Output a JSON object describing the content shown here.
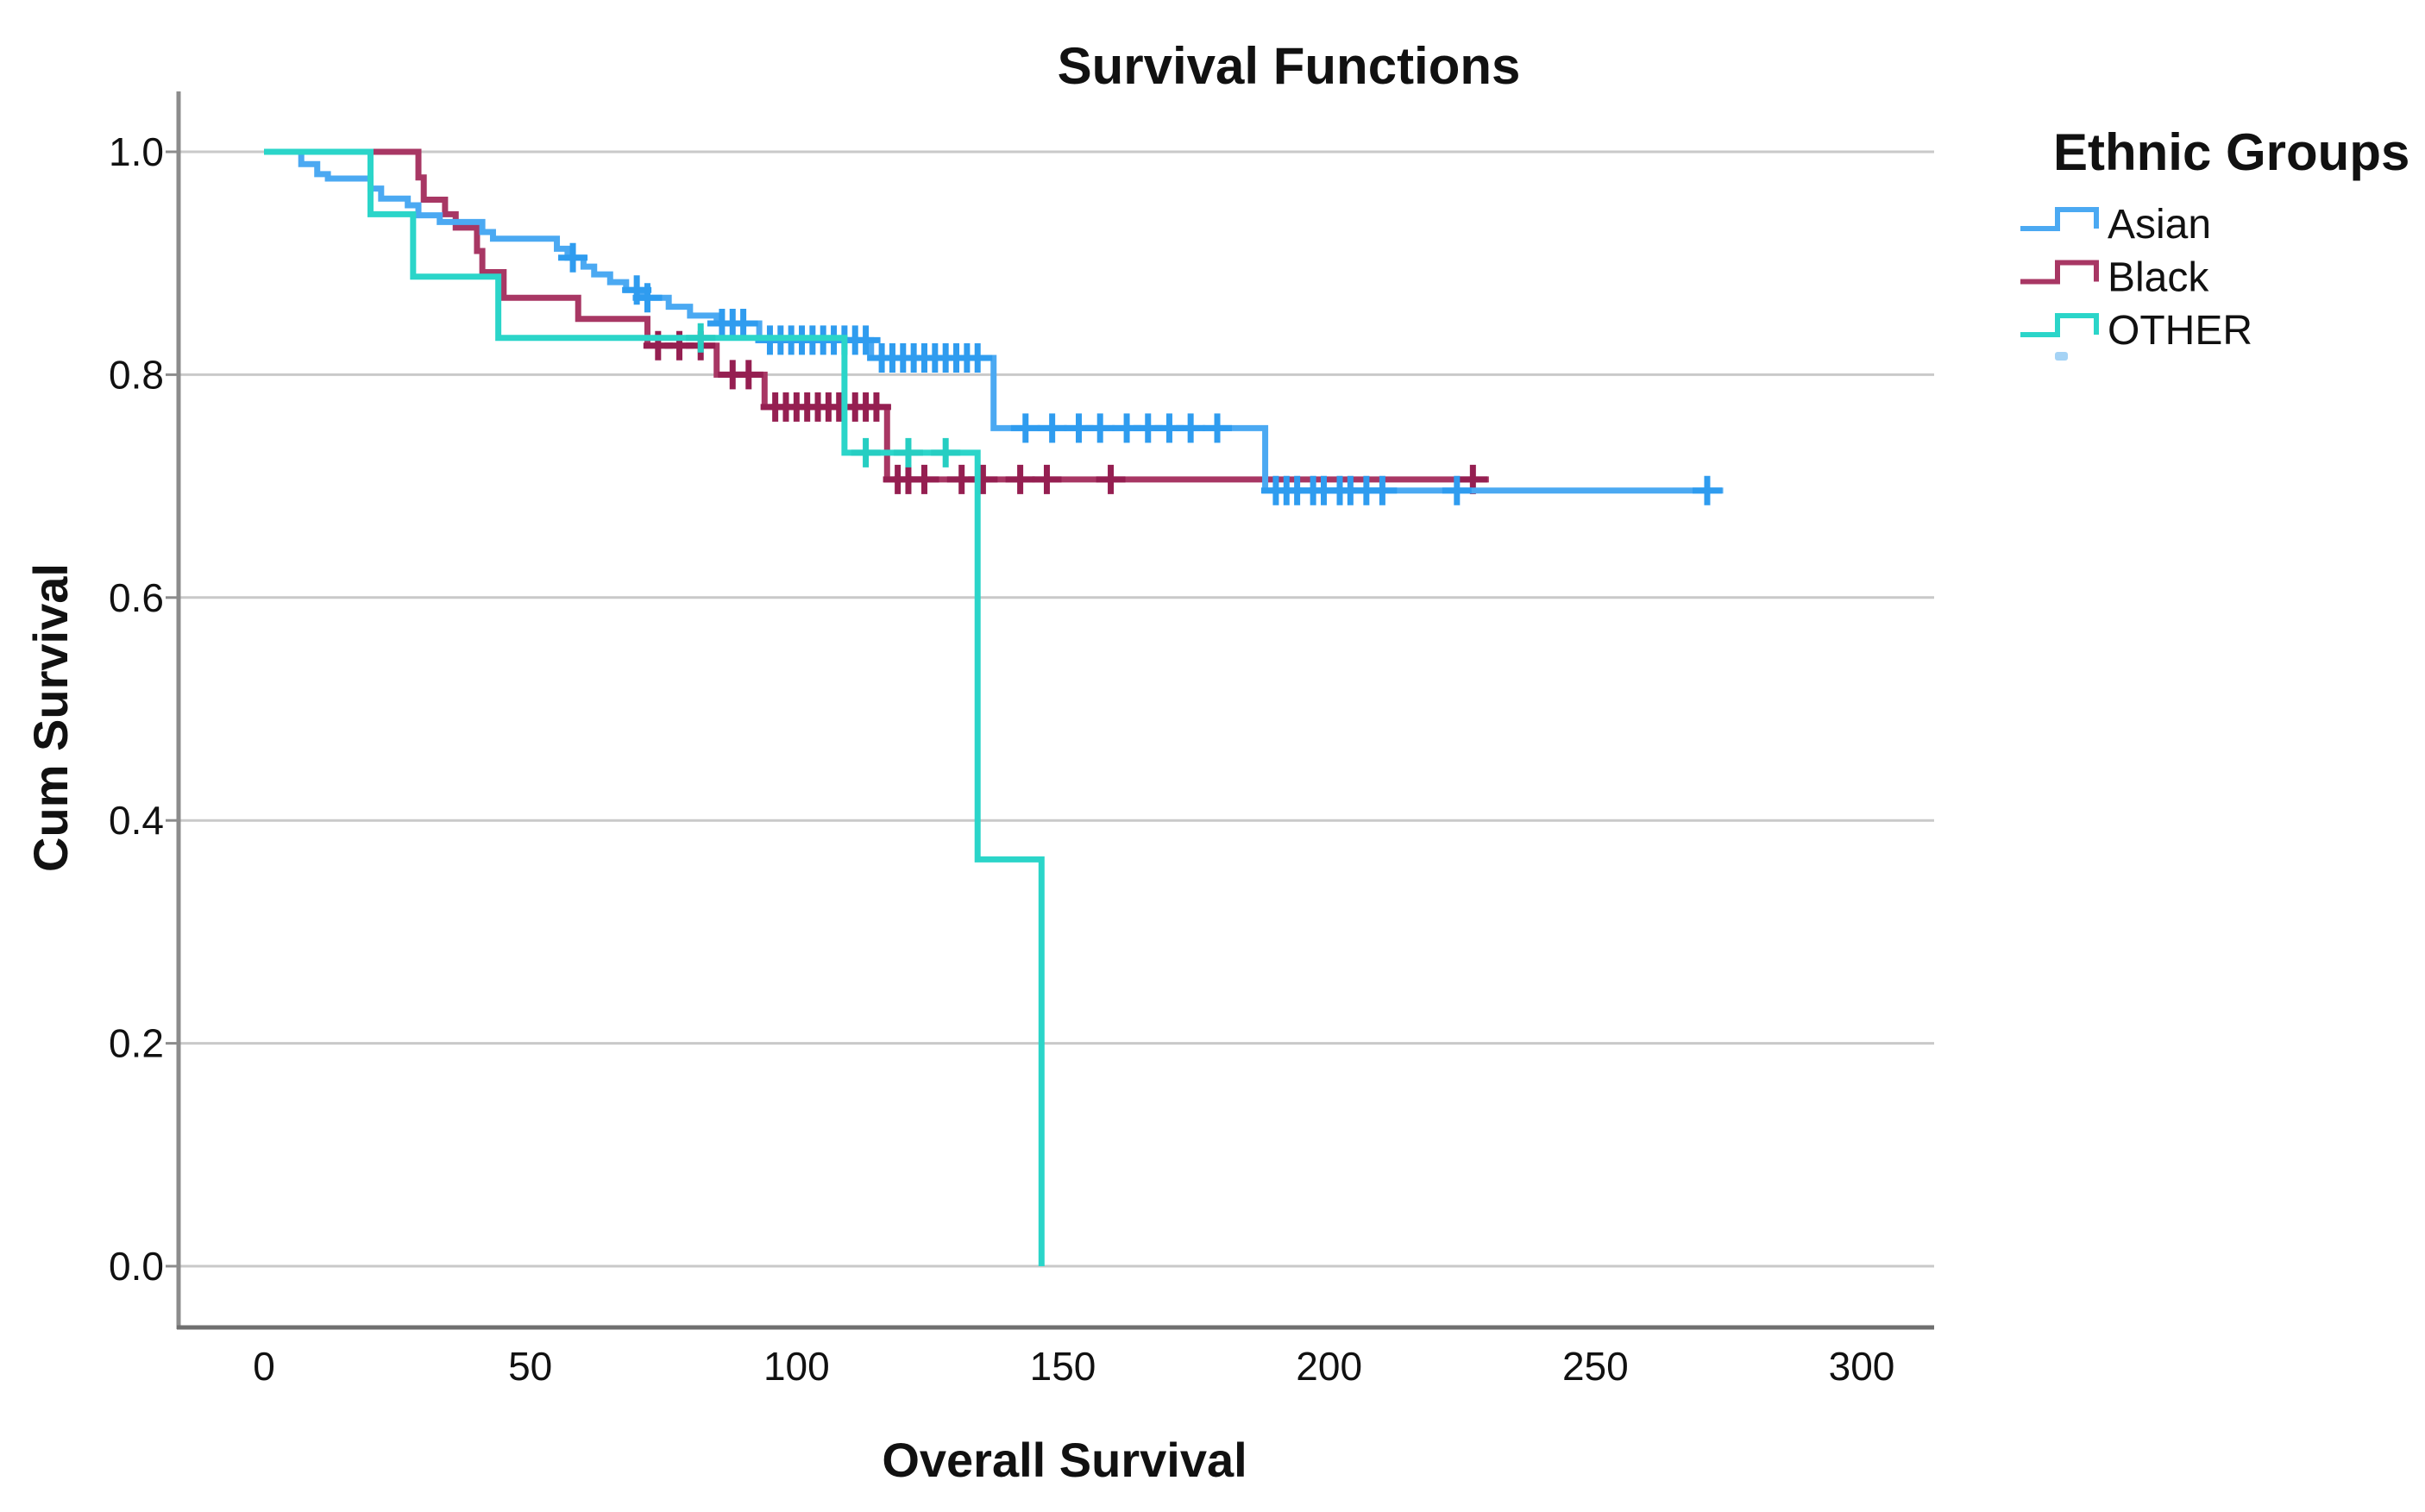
{
  "title": "Survival Functions",
  "axes": {
    "x_label": "Overall Survival",
    "y_label": "Cum Survival",
    "x_ticks": [
      0,
      50,
      100,
      150,
      200,
      250,
      300
    ],
    "y_ticks": [
      "1.0",
      "0.8",
      "0.6",
      "0.4",
      "0.2",
      "0.0"
    ]
  },
  "legend": {
    "title": "Ethnic Groups",
    "items": [
      {
        "label": "Asian",
        "color": "#4BA9F2"
      },
      {
        "label": "Black",
        "color": "#A83764"
      },
      {
        "label": "OTHER",
        "color": "#2BD5C9"
      }
    ],
    "fragment_color": "#A5D3F5"
  },
  "colors": {
    "gridline": "#C9C9C9",
    "y_axis": "#8C8C8C",
    "x_axis": "#6F6F6F",
    "background": "#FFFFFF",
    "text": "#111111"
  },
  "chart_data": {
    "type": "line",
    "subtype": "kaplan-meier-step",
    "title": "Survival Functions",
    "xlabel": "Overall Survival",
    "ylabel": "Cum Survival",
    "xlim": [
      -16,
      314
    ],
    "ylim": [
      0.0,
      1.05
    ],
    "x_tick_values": [
      0,
      50,
      100,
      150,
      200,
      250,
      300
    ],
    "y_tick_values": [
      1.0,
      0.8,
      0.6,
      0.4,
      0.2,
      0.0
    ],
    "grid": "horizontal-only",
    "legend_position": "right-top",
    "draw_order": [
      "Black",
      "Asian",
      "OTHER"
    ],
    "series": [
      {
        "name": "Asian",
        "color": "#4BA9F2",
        "marker_color": "#2F9CEF",
        "start": [
          0,
          1.0
        ],
        "steps": [
          [
            7,
            0.989
          ],
          [
            10,
            0.98
          ],
          [
            12,
            0.976
          ],
          [
            20,
            0.967
          ],
          [
            22,
            0.958
          ],
          [
            27,
            0.952
          ],
          [
            29,
            0.943
          ],
          [
            33,
            0.937
          ],
          [
            41,
            0.928
          ],
          [
            43,
            0.922
          ],
          [
            55,
            0.913
          ],
          [
            57,
            0.905
          ],
          [
            60,
            0.897
          ],
          [
            62,
            0.89
          ],
          [
            65,
            0.883
          ],
          [
            68,
            0.876
          ],
          [
            71,
            0.869
          ],
          [
            76,
            0.861
          ],
          [
            80,
            0.853
          ],
          [
            85,
            0.846
          ],
          [
            93,
            0.831
          ],
          [
            114,
            0.815
          ],
          [
            137,
            0.752
          ],
          [
            188,
            0.696
          ]
        ],
        "end_x": 274,
        "censored_x": [
          58,
          70,
          72,
          86,
          88,
          90,
          95,
          97,
          99,
          101,
          103,
          105,
          107,
          109,
          111,
          113,
          116,
          118,
          120,
          122,
          124,
          126,
          128,
          130,
          132,
          134,
          143,
          148,
          153,
          157,
          162,
          166,
          170,
          174,
          179,
          190,
          192,
          194,
          197,
          199,
          202,
          204,
          207,
          210,
          224,
          271
        ]
      },
      {
        "name": "Black",
        "color": "#A83764",
        "marker_color": "#951F51",
        "start": [
          0,
          1.0
        ],
        "steps": [
          [
            29,
            0.977
          ],
          [
            30,
            0.957
          ],
          [
            34,
            0.944
          ],
          [
            36,
            0.932
          ],
          [
            40,
            0.911
          ],
          [
            41,
            0.892
          ],
          [
            45,
            0.869
          ],
          [
            59,
            0.85
          ],
          [
            72,
            0.826
          ],
          [
            85,
            0.8
          ],
          [
            94,
            0.771
          ],
          [
            117,
            0.706
          ]
        ],
        "end_x": 230,
        "censored_x": [
          74,
          78,
          82,
          88,
          91,
          96,
          98,
          100,
          102,
          104,
          106,
          108,
          111,
          113,
          115,
          119,
          121,
          124,
          131,
          135,
          142,
          147,
          159,
          227
        ]
      },
      {
        "name": "OTHER",
        "color": "#2BD5C9",
        "marker_color": "#26CEC2",
        "start": [
          0,
          1.0
        ],
        "steps": [
          [
            20,
            0.944
          ],
          [
            28,
            0.888
          ],
          [
            44,
            0.833
          ],
          [
            109,
            0.73
          ],
          [
            134,
            0.365
          ],
          [
            146,
            0.0
          ]
        ],
        "end_x": 146,
        "censored_x": [
          82,
          113,
          121,
          128
        ]
      }
    ]
  }
}
